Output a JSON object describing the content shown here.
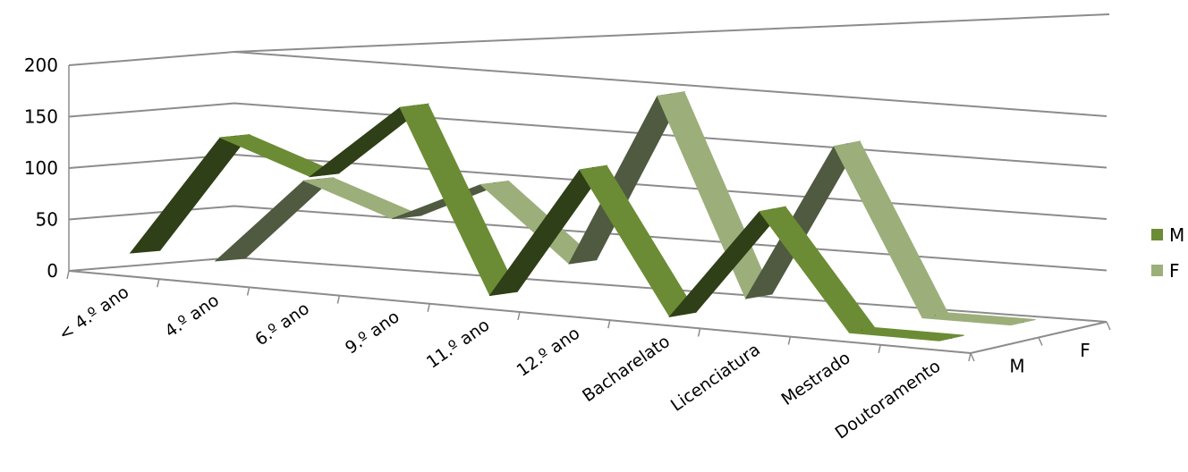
{
  "chart_data": {
    "type": "line",
    "subtype": "3d-ribbon",
    "categories": [
      "< 4.º ano",
      "4.º ano",
      "6.º ano",
      "9.º ano",
      "11.º ano",
      "12.º ano",
      "Bacharelato",
      "Licenciatura",
      "Mestrado",
      "Doutoramento"
    ],
    "series": [
      {
        "name": "M",
        "values": [
          20,
          140,
          110,
          185,
          10,
          140,
          5,
          115,
          5,
          5
        ]
      },
      {
        "name": "F",
        "values": [
          5,
          90,
          60,
          100,
          30,
          200,
          10,
          165,
          5,
          5
        ]
      }
    ],
    "depth_labels": [
      "M",
      "F"
    ],
    "ylim": [
      0,
      200
    ],
    "yticks": [
      0,
      50,
      100,
      150,
      200
    ],
    "grid": true,
    "legend": "right",
    "colors": {
      "M": "#6b8c35",
      "M_dark": "#2f3f17",
      "F": "#9caf7a",
      "F_dark": "#4f5a40",
      "grid": "#8c8c8c"
    }
  }
}
